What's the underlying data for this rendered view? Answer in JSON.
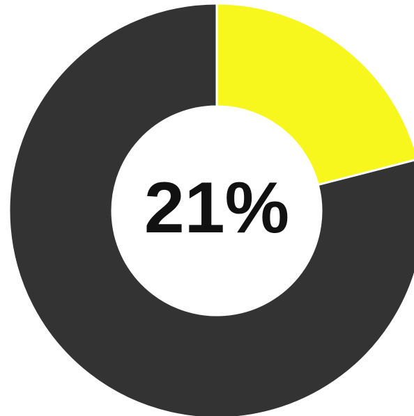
{
  "chart_data": {
    "type": "pie",
    "donut": true,
    "center_label": "21%",
    "slices": [
      {
        "value": 21,
        "color": "#f7f71e"
      },
      {
        "value": 79,
        "color": "#333333"
      }
    ],
    "start_angle_deg": 0,
    "direction": "clockwise"
  }
}
